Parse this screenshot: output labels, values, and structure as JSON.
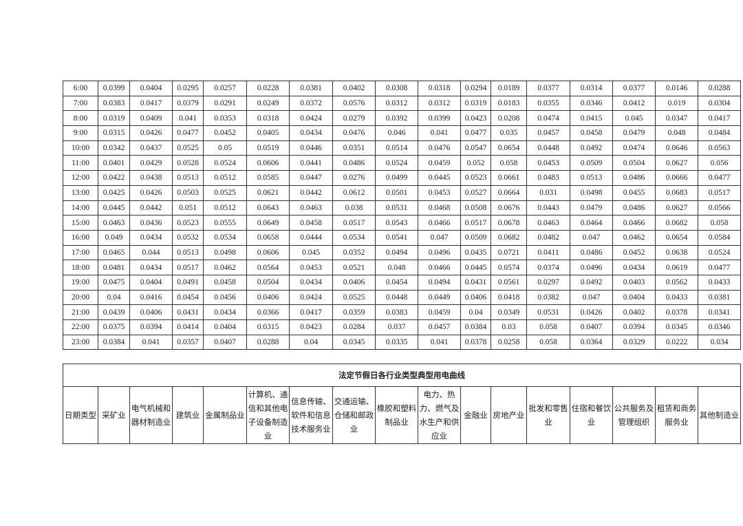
{
  "data_table": {
    "rows": [
      [
        "6:00",
        "0.0399",
        "0.0404",
        "0.0295",
        "0.0257",
        "0.0228",
        "0.0381",
        "0.0402",
        "0.0308",
        "0.0318",
        "0.0294",
        "0.0189",
        "0.0377",
        "0.0314",
        "0.0377",
        "0.0146",
        "0.0288"
      ],
      [
        "7:00",
        "0.0383",
        "0.0417",
        "0.0379",
        "0.0291",
        "0.0249",
        "0.0372",
        "0.0576",
        "0.0312",
        "0.0312",
        "0.0319",
        "0.0183",
        "0.0355",
        "0.0346",
        "0.0412",
        "0.019",
        "0.0304"
      ],
      [
        "8:00",
        "0.0319",
        "0.0409",
        "0.041",
        "0.0353",
        "0.0318",
        "0.0424",
        "0.0279",
        "0.0392",
        "0.0399",
        "0.0423",
        "0.0208",
        "0.0474",
        "0.0415",
        "0.045",
        "0.0347",
        "0.0417"
      ],
      [
        "9:00",
        "0.0315",
        "0.0426",
        "0.0477",
        "0.0452",
        "0.0405",
        "0.0434",
        "0.0476",
        "0.046",
        "0.041",
        "0.0477",
        "0.035",
        "0.0457",
        "0.0458",
        "0.0479",
        "0.048",
        "0.0484"
      ],
      [
        "10:00",
        "0.0342",
        "0.0437",
        "0.0525",
        "0.05",
        "0.0519",
        "0.0446",
        "0.0351",
        "0.0514",
        "0.0476",
        "0.0547",
        "0.0654",
        "0.0448",
        "0.0492",
        "0.0474",
        "0.0646",
        "0.0563"
      ],
      [
        "11:00",
        "0.0401",
        "0.0429",
        "0.0528",
        "0.0524",
        "0.0606",
        "0.0441",
        "0.0486",
        "0.0524",
        "0.0459",
        "0.052",
        "0.058",
        "0.0453",
        "0.0509",
        "0.0504",
        "0.0627",
        "0.056"
      ],
      [
        "12:00",
        "0.0422",
        "0.0438",
        "0.0513",
        "0.0512",
        "0.0585",
        "0.0447",
        "0.0276",
        "0.0499",
        "0.0445",
        "0.0523",
        "0.0661",
        "0.0483",
        "0.0513",
        "0.0486",
        "0.0666",
        "0.0477"
      ],
      [
        "13:00",
        "0.0425",
        "0.0426",
        "0.0503",
        "0.0525",
        "0.0621",
        "0.0442",
        "0.0612",
        "0.0501",
        "0.0453",
        "0.0527",
        "0.0664",
        "0.031",
        "0.0498",
        "0.0455",
        "0.0683",
        "0.0517"
      ],
      [
        "14:00",
        "0.0445",
        "0.0442",
        "0.051",
        "0.0512",
        "0.0643",
        "0.0463",
        "0.038",
        "0.0531",
        "0.0468",
        "0.0508",
        "0.0676",
        "0.0443",
        "0.0479",
        "0.0486",
        "0.0627",
        "0.0566"
      ],
      [
        "15:00",
        "0.0463",
        "0.0436",
        "0.0523",
        "0.0555",
        "0.0649",
        "0.0458",
        "0.0517",
        "0.0543",
        "0.0466",
        "0.0517",
        "0.0678",
        "0.0463",
        "0.0464",
        "0.0466",
        "0.0682",
        "0.058"
      ],
      [
        "16:00",
        "0.049",
        "0.0434",
        "0.0532",
        "0.0534",
        "0.0658",
        "0.0444",
        "0.0534",
        "0.0541",
        "0.047",
        "0.0509",
        "0.0682",
        "0.0482",
        "0.047",
        "0.0462",
        "0.0654",
        "0.0584"
      ],
      [
        "17:00",
        "0.0465",
        "0.044",
        "0.0513",
        "0.0498",
        "0.0606",
        "0.045",
        "0.0352",
        "0.0494",
        "0.0496",
        "0.0435",
        "0.0721",
        "0.0411",
        "0.0486",
        "0.0452",
        "0.0638",
        "0.0524"
      ],
      [
        "18:00",
        "0.0481",
        "0.0434",
        "0.0517",
        "0.0462",
        "0.0564",
        "0.0453",
        "0.0521",
        "0.048",
        "0.0466",
        "0.0445",
        "0.0574",
        "0.0374",
        "0.0496",
        "0.0434",
        "0.0619",
        "0.0477"
      ],
      [
        "19:00",
        "0.0475",
        "0.0404",
        "0.0491",
        "0.0458",
        "0.0504",
        "0.0434",
        "0.0406",
        "0.0454",
        "0.0494",
        "0.0431",
        "0.0561",
        "0.0297",
        "0.0492",
        "0.0403",
        "0.0562",
        "0.0433"
      ],
      [
        "20:00",
        "0.04",
        "0.0416",
        "0.0454",
        "0.0456",
        "0.0406",
        "0.0424",
        "0.0525",
        "0.0448",
        "0.0449",
        "0.0406",
        "0.0418",
        "0.0382",
        "0.047",
        "0.0404",
        "0.0433",
        "0.0381"
      ],
      [
        "21:00",
        "0.0439",
        "0.0406",
        "0.0431",
        "0.0434",
        "0.0366",
        "0.0417",
        "0.0359",
        "0.0383",
        "0.0459",
        "0.04",
        "0.0349",
        "0.0531",
        "0.0426",
        "0.0402",
        "0.0378",
        "0.0341"
      ],
      [
        "22:00",
        "0.0375",
        "0.0394",
        "0.0414",
        "0.0404",
        "0.0315",
        "0.0423",
        "0.0284",
        "0.037",
        "0.0457",
        "0.0384",
        "0.03",
        "0.058",
        "0.0407",
        "0.0394",
        "0.0345",
        "0.0346"
      ],
      [
        "23:00",
        "0.0384",
        "0.041",
        "0.0357",
        "0.0407",
        "0.0288",
        "0.04",
        "0.0345",
        "0.0335",
        "0.041",
        "0.0378",
        "0.0258",
        "0.058",
        "0.0364",
        "0.0329",
        "0.0222",
        "0.034"
      ]
    ]
  },
  "holiday_table": {
    "title": "法定节假日各行业类型典型用电曲线",
    "headers": [
      "日期类型",
      "采矿业",
      "电气机械和器材制造业",
      "建筑业",
      "金属制品业",
      "计算机、通信和其他电子设备制造业",
      "信息传输、软件和信息技术服务业",
      "交通运输、仓储和邮政业",
      "橡胶和塑料制品业",
      "电力、热力、燃气及水生产和供应业",
      "金融业",
      "房地产业",
      "批发和零售业",
      "住宿和餐饮业",
      "公共服务及管理组织",
      "租赁和商务服务业",
      "其他制造业"
    ]
  }
}
